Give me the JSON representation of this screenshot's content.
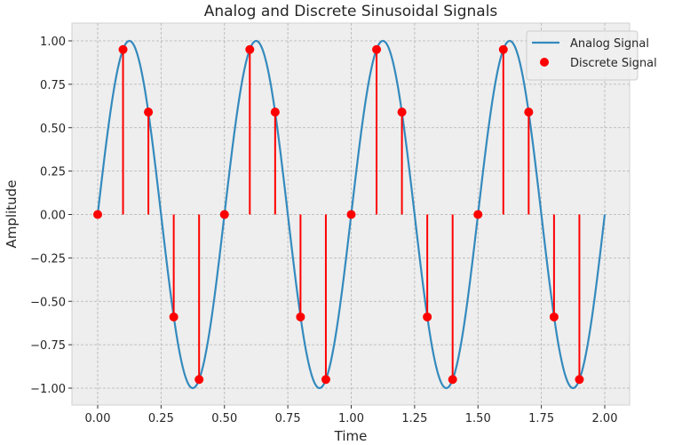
{
  "chart_data": {
    "type": "line",
    "title": "Analog and Discrete Sinusoidal Signals",
    "xlabel": "Time",
    "ylabel": "Amplitude",
    "xlim": [
      -0.1,
      2.1
    ],
    "ylim": [
      -1.1,
      1.1
    ],
    "grid": true,
    "legend_position": "upper right",
    "x_ticks": [
      "0.00",
      "0.25",
      "0.50",
      "0.75",
      "1.00",
      "1.25",
      "1.50",
      "1.75",
      "2.00"
    ],
    "y_ticks": [
      "1.00",
      "0.75",
      "0.50",
      "0.25",
      "0.00",
      "−0.25",
      "−0.50",
      "−0.75",
      "−1.00"
    ],
    "series": [
      {
        "name": "Analog Signal",
        "kind": "line",
        "color": "#348abd",
        "function": "sin(2*pi*2*t)",
        "frequency_hz": 2,
        "t_range": [
          0,
          2
        ]
      },
      {
        "name": "Discrete Signal",
        "kind": "stem",
        "color": "#ff0000",
        "x": [
          0.0,
          0.1,
          0.2,
          0.3,
          0.4,
          0.5,
          0.6,
          0.7,
          0.8,
          0.9,
          1.0,
          1.1,
          1.2,
          1.3,
          1.4,
          1.5,
          1.6,
          1.7,
          1.8,
          1.9
        ],
        "values": [
          0.0,
          0.95,
          0.59,
          -0.59,
          -0.95,
          0.0,
          0.95,
          0.59,
          -0.59,
          -0.95,
          0.0,
          0.95,
          0.59,
          -0.59,
          -0.95,
          0.0,
          0.95,
          0.59,
          -0.59,
          -0.95
        ]
      }
    ]
  },
  "colors": {
    "plot_bg": "#eeeeee",
    "grid": "#b2b2b2",
    "analog": "#348abd",
    "discrete": "#ff0000"
  }
}
